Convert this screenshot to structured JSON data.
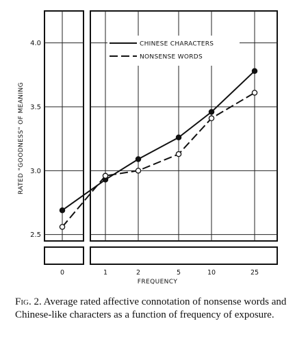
{
  "chart_data": {
    "type": "line",
    "x_categories": [
      "0",
      "1",
      "2",
      "5",
      "10",
      "25"
    ],
    "xlabel": "FREQUENCY",
    "ylabel": "RATED \"GOODNESS\" OF MEANING",
    "ylim": [
      2.45,
      4.25
    ],
    "yticks": [
      {
        "value": 2.5,
        "label": "2.5"
      },
      {
        "value": 3.0,
        "label": "3.0"
      },
      {
        "value": 3.5,
        "label": "3.5"
      },
      {
        "value": 4.0,
        "label": "4.0"
      }
    ],
    "grid": true,
    "legend_position": "top-right",
    "series": [
      {
        "name": "CHINESE CHARACTERS",
        "line_style": "solid",
        "marker": "filled-circle",
        "values": [
          2.69,
          2.93,
          3.09,
          3.26,
          3.46,
          3.78
        ]
      },
      {
        "name": "NONSENSE WORDS",
        "line_style": "dashed",
        "marker": "open-circle",
        "values": [
          2.56,
          2.96,
          3.0,
          3.13,
          3.41,
          3.61
        ]
      }
    ]
  },
  "caption": {
    "figure_label": "Fig. 2.",
    "text": "Average rated affective connotation of nonsense words and Chinese-like characters as a function of frequency of exposure."
  }
}
